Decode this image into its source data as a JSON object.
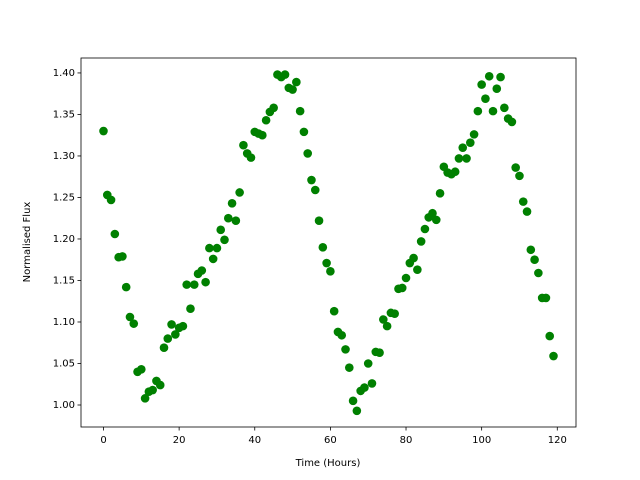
{
  "chart_data": {
    "type": "scatter",
    "xlabel": "Time (Hours)",
    "ylabel": "Normalised Flux",
    "color": "#008000",
    "x": [
      0,
      1,
      2,
      3,
      4,
      5,
      6,
      7,
      8,
      9,
      10,
      11,
      12,
      13,
      14,
      15,
      16,
      17,
      18,
      19,
      20,
      21,
      22,
      23,
      24,
      25,
      26,
      27,
      28,
      29,
      30,
      31,
      32,
      33,
      34,
      35,
      36,
      37,
      38,
      39,
      40,
      41,
      42,
      43,
      44,
      45,
      46,
      47,
      48,
      49,
      50,
      51,
      52,
      53,
      54,
      55,
      56,
      57,
      58,
      59,
      60,
      61,
      62,
      63,
      64,
      65,
      66,
      67,
      68,
      69,
      70,
      71,
      72,
      73,
      74,
      75,
      76,
      77,
      78,
      79,
      80,
      81,
      82,
      83,
      84,
      85,
      86,
      87,
      88,
      89,
      90,
      91,
      92,
      93,
      94,
      95,
      96,
      97,
      98,
      99,
      100,
      101,
      102,
      103,
      104,
      105,
      106,
      107,
      108,
      109,
      110,
      111,
      112,
      113,
      114,
      115,
      116,
      117,
      118,
      119
    ],
    "values": [
      1.33,
      1.253,
      1.247,
      1.206,
      1.178,
      1.179,
      1.142,
      1.106,
      1.098,
      1.04,
      1.043,
      1.008,
      1.016,
      1.018,
      1.029,
      1.024,
      1.069,
      1.08,
      1.097,
      1.085,
      1.093,
      1.095,
      1.145,
      1.116,
      1.145,
      1.158,
      1.162,
      1.148,
      1.189,
      1.176,
      1.189,
      1.211,
      1.199,
      1.225,
      1.243,
      1.222,
      1.256,
      1.313,
      1.303,
      1.298,
      1.329,
      1.327,
      1.325,
      1.343,
      1.353,
      1.358,
      1.398,
      1.395,
      1.398,
      1.382,
      1.38,
      1.389,
      1.354,
      1.329,
      1.303,
      1.271,
      1.259,
      1.222,
      1.19,
      1.171,
      1.161,
      1.113,
      1.088,
      1.084,
      1.067,
      1.045,
      1.005,
      0.993,
      1.017,
      1.021,
      1.05,
      1.026,
      1.064,
      1.063,
      1.103,
      1.095,
      1.111,
      1.11,
      1.14,
      1.141,
      1.153,
      1.171,
      1.177,
      1.163,
      1.197,
      1.212,
      1.226,
      1.231,
      1.223,
      1.255,
      1.287,
      1.28,
      1.278,
      1.281,
      1.297,
      1.31,
      1.297,
      1.316,
      1.326,
      1.354,
      1.386,
      1.369,
      1.396,
      1.354,
      1.381,
      1.395,
      1.358,
      1.345,
      1.341,
      1.286,
      1.276,
      1.245,
      1.233,
      1.187,
      1.175,
      1.159,
      1.129,
      1.129,
      1.083,
      1.059
    ],
    "xlim": [
      -5.95,
      124.95
    ],
    "ylim": [
      0.9735,
      1.418
    ],
    "xticks": [
      0,
      20,
      40,
      60,
      80,
      100,
      120
    ],
    "yticks": [
      {
        "value": 1,
        "label": "1.00"
      },
      1.05,
      {
        "value": 1.1,
        "label": "1.10"
      },
      1.15,
      {
        "value": 1.2,
        "label": "1.20"
      },
      1.25,
      {
        "value": 1.3,
        "label": "1.30"
      },
      1.35,
      {
        "value": 1.4,
        "label": "1.40"
      }
    ]
  }
}
